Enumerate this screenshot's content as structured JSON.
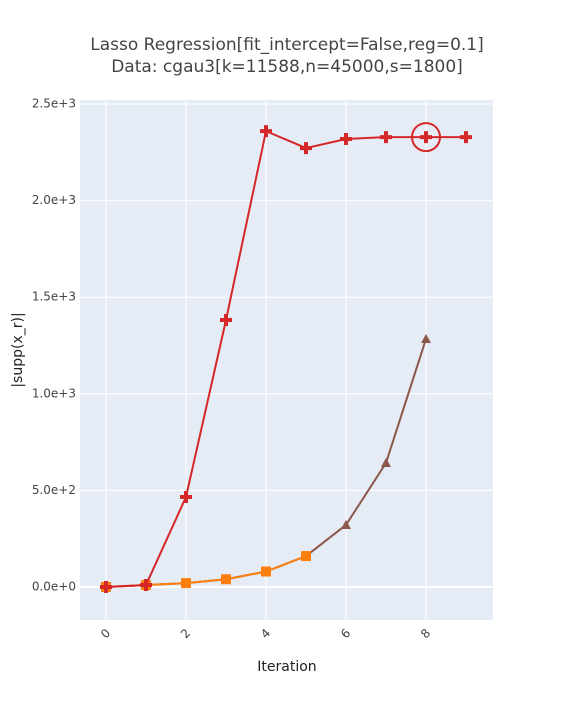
{
  "chart_data": {
    "type": "line",
    "title": "Lasso Regression[fit_intercept=False,reg=0.1]",
    "subtitle": "Data: cgau3[k=11588,n=45000,s=1800]",
    "x_label": "Iteration",
    "y_label": "|supp(x_r)|",
    "series": [
      {
        "color": "#8c564b",
        "marker": "triangle-up",
        "x": [
          0,
          1,
          2,
          3,
          4,
          5,
          6,
          7,
          8
        ],
        "values": [
          0,
          10,
          20,
          40,
          80,
          160,
          321,
          642,
          1284
        ]
      },
      {
        "color": "#ff7f0e",
        "marker": "square",
        "x": [
          0,
          1,
          2,
          3,
          4,
          5
        ],
        "values": [
          0,
          10,
          20,
          40,
          80,
          160
        ]
      },
      {
        "color": "#d62728",
        "marker": "cross",
        "x": [
          0,
          1,
          2,
          3,
          4,
          5,
          6,
          7,
          8,
          9
        ],
        "values": [
          0,
          10,
          466,
          1382,
          2360,
          2272,
          2319,
          2329,
          2329,
          2329
        ]
      }
    ],
    "highlight": {
      "series": 2,
      "index": 8
    },
    "xlim": [
      -0.65,
      9.675
    ],
    "ylim": [
      -171,
      2521
    ],
    "xticks": [
      0,
      2,
      4,
      6,
      8
    ],
    "yticks": [
      {
        "value": 0,
        "label": "0.0e+0"
      },
      {
        "value": 500,
        "label": "5.0e+2"
      },
      {
        "value": 1000,
        "label": "1.0e+3"
      },
      {
        "value": 1500,
        "label": "1.5e+3"
      },
      {
        "value": 2000,
        "label": "2.0e+3"
      },
      {
        "value": 2500,
        "label": "2.5e+3"
      }
    ],
    "grid": true
  }
}
